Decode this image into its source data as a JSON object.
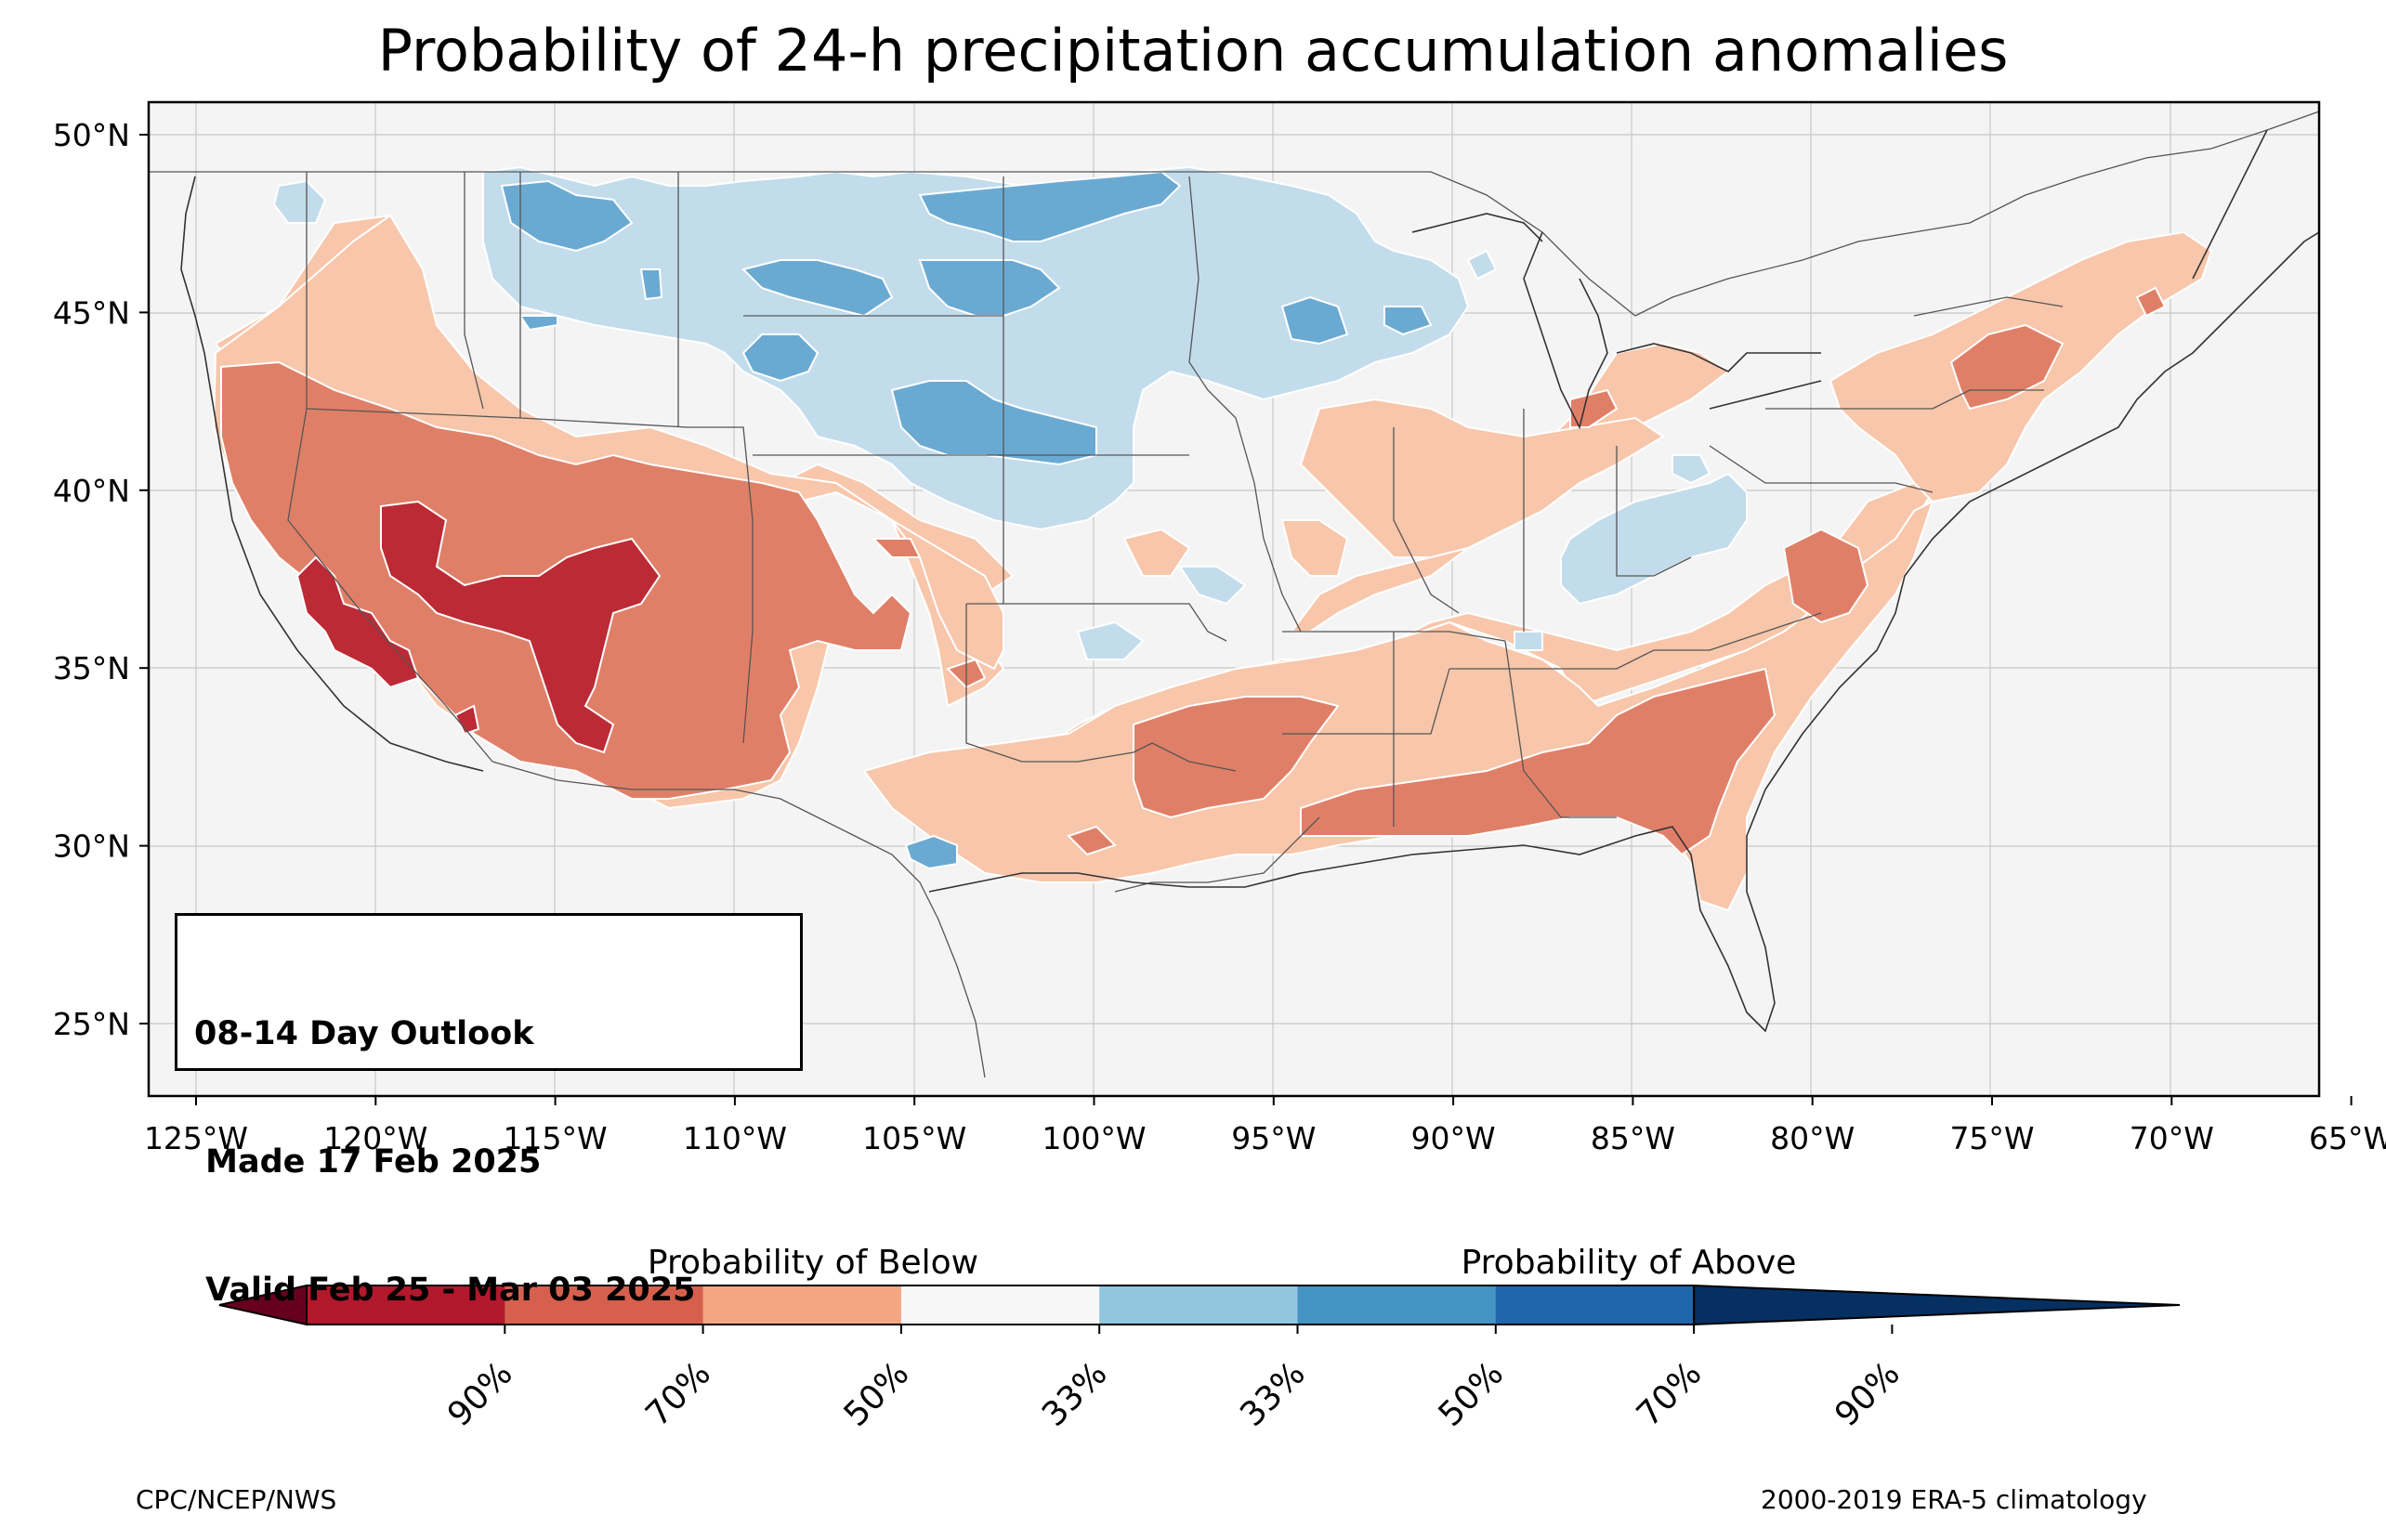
{
  "title": "Probability of 24-h precipitation accumulation anomalies",
  "info_box": {
    "line1": "08-14 Day Outlook",
    "line2": " Made 17 Feb 2025",
    "line3": " Valid Feb 25 - Mar 03 2025"
  },
  "credits": {
    "left": "CPC/NCEP/NWS",
    "right": "2000-2019 ERA-5 climatology"
  },
  "axes": {
    "lon_ticks": [
      "125°W",
      "120°W",
      "115°W",
      "110°W",
      "105°W",
      "100°W",
      "95°W",
      "90°W",
      "85°W",
      "80°W",
      "75°W",
      "70°W",
      "65°W"
    ],
    "lat_ticks": [
      "50°N",
      "45°N",
      "40°N",
      "35°N",
      "30°N",
      "25°N"
    ],
    "lon_range": [
      -125.5,
      -65
    ],
    "lat_range": [
      23,
      51
    ]
  },
  "colorbar": {
    "below_label": "Probability of Below",
    "above_label": "Probability of Above",
    "tick_labels": [
      "90%",
      "70%",
      "50%",
      "33%",
      "33%",
      "50%",
      "70%",
      "90%"
    ],
    "colors": [
      "#67001f",
      "#b2182b",
      "#d6604d",
      "#f4a582",
      "#f7f7f7",
      "#92c5de",
      "#4393c3",
      "#2166ac",
      "#053061"
    ]
  },
  "map_colors": {
    "background": "#f4f4f4",
    "below_33": "#f8c6aa",
    "below_50": "#e07f68",
    "below_70": "#bb2a35",
    "above_33": "#c2dcec",
    "above_50": "#6aaad2",
    "grid": "#cccccc",
    "border": "#555555"
  }
}
